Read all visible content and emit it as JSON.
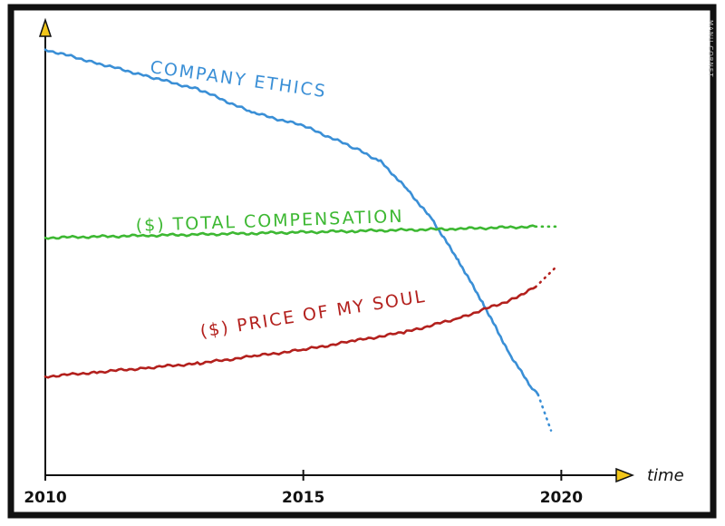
{
  "chart_data": {
    "type": "line",
    "title": "",
    "xlabel": "time",
    "ylabel": "",
    "xlim": [
      2010,
      2021.1
    ],
    "ylim": [
      0,
      100
    ],
    "x_ticks": [
      2010,
      2015,
      2020
    ],
    "x_tick_labels": [
      "2010",
      "2015",
      "2020"
    ],
    "grid": false,
    "legend": "none",
    "series": [
      {
        "name": "COMPANY ETHICS",
        "color": "#3a8fd6",
        "x": [
          2010,
          2011,
          2012,
          2013,
          2014,
          2015,
          2016,
          2016.5,
          2017,
          2017.5,
          2018,
          2018.5,
          2019,
          2019.4,
          2019.55
        ],
        "y": [
          95,
          92,
          89,
          86,
          81,
          78,
          73,
          70,
          64,
          57,
          48,
          38,
          27,
          20,
          18
        ],
        "projection": {
          "x": [
            2019.55,
            2019.8
          ],
          "y": [
            18,
            10
          ]
        }
      },
      {
        "name": "($) TOTAL COMPENSATION",
        "color": "#3db832",
        "x": [
          2010,
          2012,
          2014,
          2016,
          2018,
          2019.5
        ],
        "y": [
          53,
          53.5,
          54,
          54.5,
          55,
          55.5
        ],
        "projection": {
          "x": [
            2019.5,
            2019.9
          ],
          "y": [
            55.5,
            55.5
          ]
        }
      },
      {
        "name": "($) PRICE OF MY SOUL",
        "color": "#b3201d",
        "x": [
          2010,
          2011,
          2012,
          2013,
          2014,
          2015,
          2016,
          2017,
          2018,
          2019,
          2019.5
        ],
        "y": [
          22,
          23,
          24,
          25,
          26.5,
          28,
          30,
          32,
          35,
          39,
          42
        ],
        "projection": {
          "x": [
            2019.5,
            2019.9
          ],
          "y": [
            42,
            46.5
          ]
        }
      }
    ],
    "signature": "MANU CORNET"
  }
}
